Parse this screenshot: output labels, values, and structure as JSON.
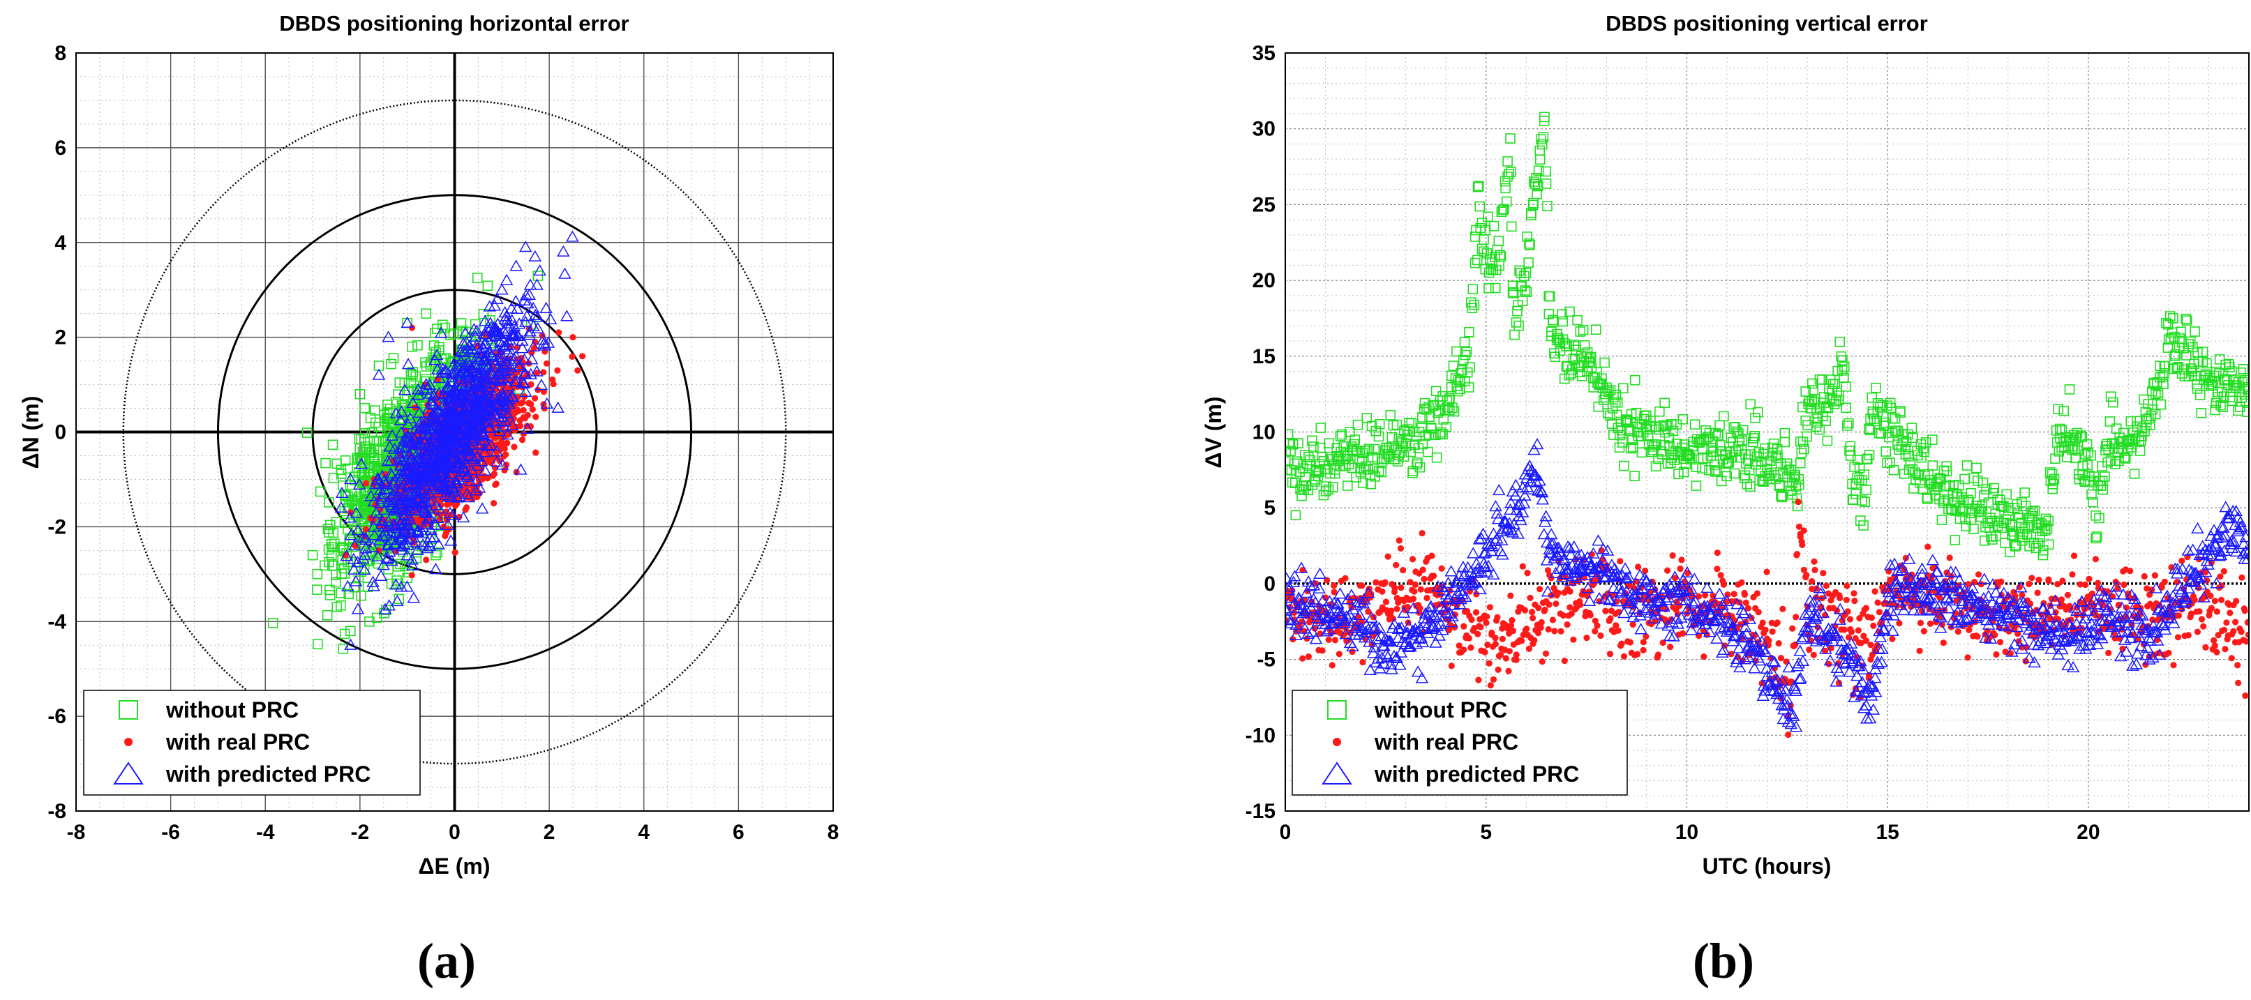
{
  "chart_data": [
    {
      "type": "scatter",
      "panel_label": "(a)",
      "title": "DBDS positioning horizontal error",
      "xlabel": "ΔE (m)",
      "ylabel": "ΔN (m)",
      "xlim": [
        -8,
        8
      ],
      "ylim": [
        -8,
        8
      ],
      "xticks": [
        -8,
        -6,
        -4,
        -2,
        0,
        2,
        4,
        6,
        8
      ],
      "yticks": [
        -8,
        -6,
        -4,
        -2,
        0,
        2,
        4,
        6,
        8
      ],
      "grid": true,
      "reference_circles_radius": [
        3,
        5,
        7
      ],
      "legend_position": "bottom-left",
      "series": [
        {
          "name": "without PRC",
          "marker": "square",
          "color": "#22dd22",
          "distribution": {
            "center": [
              -0.9,
              -0.6
            ],
            "spread": [
              0.75,
              1.2
            ],
            "correlation": 0.65,
            "count": 1100
          },
          "points": [
            [
              -2.2,
              -4.2
            ],
            [
              -2.9,
              -3.0
            ],
            [
              -2.4,
              -3.4
            ],
            [
              -1.2,
              -3.2
            ],
            [
              -1.8,
              -4.0
            ],
            [
              -0.6,
              2.5
            ],
            [
              -1.0,
              2.3
            ],
            [
              -0.2,
              2.2
            ],
            [
              -1.6,
              1.4
            ],
            [
              -2.1,
              -1.6
            ],
            [
              -2.6,
              -2.6
            ],
            [
              -3.0,
              -2.6
            ],
            [
              -0.4,
              -2.6
            ],
            [
              -1.4,
              -2.9
            ],
            [
              -0.9,
              1.8
            ],
            [
              -2.0,
              0.8
            ],
            [
              -2.4,
              -0.8
            ],
            [
              -1.6,
              -0.2
            ],
            [
              -1.9,
              -2.2
            ],
            [
              -2.5,
              -1.9
            ]
          ]
        },
        {
          "name": "with real PRC",
          "marker": "dot",
          "color": "#ff1a1a",
          "distribution": {
            "center": [
              0.2,
              -0.2
            ],
            "spread": [
              0.7,
              0.85
            ],
            "correlation": 0.7,
            "count": 1200
          },
          "points": [
            [
              2.7,
              1.6
            ],
            [
              2.5,
              2.0
            ],
            [
              2.6,
              1.3
            ],
            [
              2.2,
              2.1
            ],
            [
              -2.3,
              -2.6
            ],
            [
              -2.1,
              -2.4
            ],
            [
              -2.2,
              -1.7
            ],
            [
              -1.9,
              -2.2
            ],
            [
              -1.6,
              -2.5
            ],
            [
              -0.6,
              -2.7
            ],
            [
              -0.9,
              2.2
            ],
            [
              1.9,
              0.5
            ],
            [
              -1.2,
              -2.0
            ],
            [
              1.7,
              1.9
            ],
            [
              -1.7,
              -1.0
            ]
          ]
        },
        {
          "name": "with predicted PRC",
          "marker": "triangle",
          "color": "#1a1aff",
          "distribution": {
            "center": [
              -0.1,
              -0.1
            ],
            "spread": [
              0.85,
              1.3
            ],
            "correlation": 0.8,
            "count": 1100
          },
          "points": [
            [
              1.5,
              3.9
            ],
            [
              1.3,
              3.5
            ],
            [
              1.7,
              3.7
            ],
            [
              1.1,
              3.2
            ],
            [
              1.8,
              3.4
            ],
            [
              0.9,
              2.8
            ],
            [
              1.6,
              3.1
            ],
            [
              1.2,
              2.6
            ],
            [
              1.0,
              3.0
            ],
            [
              -2.4,
              -1.6
            ],
            [
              -1.9,
              -2.6
            ],
            [
              -1.4,
              -2.4
            ],
            [
              -0.9,
              -2.7
            ],
            [
              -0.4,
              -2.9
            ],
            [
              -1.6,
              1.2
            ],
            [
              -1.4,
              2.0
            ],
            [
              -1.0,
              2.3
            ],
            [
              -2.2,
              -1.0
            ],
            [
              1.4,
              -0.8
            ],
            [
              0.2,
              1.7
            ]
          ]
        }
      ]
    },
    {
      "type": "scatter",
      "panel_label": "(b)",
      "title": "DBDS positioning vertical error",
      "xlabel": "UTC (hours)",
      "ylabel": "ΔV (m)",
      "xlim": [
        0,
        24
      ],
      "ylim": [
        -15,
        35
      ],
      "xticks": [
        0,
        5,
        10,
        15,
        20
      ],
      "yticks": [
        -15,
        -10,
        -5,
        0,
        5,
        10,
        15,
        20,
        25,
        30,
        35
      ],
      "grid": true,
      "zero_reference_line": 0,
      "legend_position": "bottom-left",
      "series": [
        {
          "name": "without PRC",
          "marker": "square",
          "color": "#22dd22",
          "trend": [
            [
              0,
              8.5
            ],
            [
              0.5,
              7.5
            ],
            [
              1,
              7.5
            ],
            [
              1.5,
              8.2
            ],
            [
              2,
              8.6
            ],
            [
              2.5,
              8.9
            ],
            [
              3,
              9.3
            ],
            [
              3.5,
              10.2
            ],
            [
              4,
              11.3
            ],
            [
              4.3,
              13.0
            ],
            [
              4.6,
              15.0
            ],
            [
              4.8,
              25.0
            ],
            [
              5.0,
              22.0
            ],
            [
              5.3,
              21.0
            ],
            [
              5.5,
              27.0
            ],
            [
              5.6,
              29.0
            ],
            [
              5.7,
              17.0
            ],
            [
              5.9,
              19.0
            ],
            [
              6.1,
              23.0
            ],
            [
              6.3,
              27.0
            ],
            [
              6.45,
              31.0
            ],
            [
              6.6,
              16.5
            ],
            [
              7,
              15.8
            ],
            [
              7.5,
              15.0
            ],
            [
              8,
              12.5
            ],
            [
              8.5,
              10.5
            ],
            [
              9,
              9.5
            ],
            [
              9.5,
              9.2
            ],
            [
              10,
              8.9
            ],
            [
              10.5,
              8.7
            ],
            [
              11,
              8.6
            ],
            [
              11.5,
              8.5
            ],
            [
              12,
              8.4
            ],
            [
              12.5,
              7.5
            ],
            [
              12.8,
              6.0
            ],
            [
              12.9,
              11.0
            ],
            [
              13.2,
              11.5
            ],
            [
              13.6,
              12.0
            ],
            [
              13.9,
              14.5
            ],
            [
              14.1,
              7.0
            ],
            [
              14.4,
              5.5
            ],
            [
              14.6,
              11.5
            ],
            [
              14.9,
              10.5
            ],
            [
              15.5,
              8.5
            ],
            [
              16,
              7.5
            ],
            [
              16.5,
              6.0
            ],
            [
              17,
              5.5
            ],
            [
              17.5,
              4.5
            ],
            [
              18,
              4.0
            ],
            [
              18.5,
              3.8
            ],
            [
              19,
              3.5
            ],
            [
              19.2,
              10.0
            ],
            [
              19.6,
              9.5
            ],
            [
              20,
              7.0
            ],
            [
              20.2,
              5.0
            ],
            [
              20.5,
              9.5
            ],
            [
              21,
              9.0
            ],
            [
              21.5,
              11.0
            ],
            [
              21.9,
              14.0
            ],
            [
              22.0,
              16.5
            ],
            [
              22.5,
              14.5
            ],
            [
              23,
              13.5
            ],
            [
              23.5,
              12.8
            ],
            [
              24,
              12.5
            ]
          ]
        },
        {
          "name": "with real PRC",
          "marker": "dot",
          "color": "#ff1a1a",
          "trend": [
            [
              0,
              -1.5
            ],
            [
              0.5,
              -2.0
            ],
            [
              1,
              -2.0
            ],
            [
              1.5,
              -2.5
            ],
            [
              2,
              -2.2
            ],
            [
              2.5,
              -1.0
            ],
            [
              3,
              -0.5
            ],
            [
              3.5,
              -0.3
            ],
            [
              4,
              -1.0
            ],
            [
              4.5,
              -2.0
            ],
            [
              5,
              -3.5
            ],
            [
              5.5,
              -4.0
            ],
            [
              6,
              -3.0
            ],
            [
              6.5,
              -2.0
            ],
            [
              7,
              -1.5
            ],
            [
              7.5,
              -1.0
            ],
            [
              8,
              -1.2
            ],
            [
              8.5,
              -1.5
            ],
            [
              9,
              -1.8
            ],
            [
              9.5,
              -1.2
            ],
            [
              10,
              -1.0
            ],
            [
              10.5,
              -2.0
            ],
            [
              11,
              -1.5
            ],
            [
              11.5,
              -3.0
            ],
            [
              12,
              -3.5
            ],
            [
              12.3,
              -5.0
            ],
            [
              12.6,
              -6.5
            ],
            [
              12.8,
              5.0
            ],
            [
              13,
              -2.0
            ],
            [
              13.5,
              -2.0
            ],
            [
              14,
              -3.0
            ],
            [
              14.5,
              -4.0
            ],
            [
              15,
              -1.5
            ],
            [
              15.5,
              -0.8
            ],
            [
              16,
              -1.0
            ],
            [
              16.5,
              -1.3
            ],
            [
              17,
              -1.5
            ],
            [
              17.5,
              -1.8
            ],
            [
              18,
              -2.0
            ],
            [
              18.5,
              -2.0
            ],
            [
              19,
              -1.5
            ],
            [
              19.5,
              -2.0
            ],
            [
              20,
              -1.0
            ],
            [
              20.5,
              -2.0
            ],
            [
              21,
              -1.5
            ],
            [
              21.5,
              -2.5
            ],
            [
              22,
              -2.0
            ],
            [
              22.5,
              -0.5
            ],
            [
              23,
              -1.5
            ],
            [
              23.5,
              -2.5
            ],
            [
              24,
              -3.0
            ]
          ]
        },
        {
          "name": "with predicted PRC",
          "marker": "triangle",
          "color": "#1a1aff",
          "trend": [
            [
              0,
              -1.0
            ],
            [
              0.5,
              -1.5
            ],
            [
              1,
              -2.0
            ],
            [
              1.5,
              -2.2
            ],
            [
              2,
              -2.5
            ],
            [
              2.3,
              -5.0
            ],
            [
              2.7,
              -4.5
            ],
            [
              3,
              -4.0
            ],
            [
              3.5,
              -3.0
            ],
            [
              4,
              -1.5
            ],
            [
              4.5,
              0.5
            ],
            [
              5,
              2.0
            ],
            [
              5.5,
              4.0
            ],
            [
              6,
              6.0
            ],
            [
              6.3,
              8.0
            ],
            [
              6.5,
              2.0
            ],
            [
              7,
              1.5
            ],
            [
              7.5,
              1.0
            ],
            [
              8,
              0.5
            ],
            [
              8.5,
              -0.5
            ],
            [
              9,
              -1.0
            ],
            [
              9.5,
              -1.5
            ],
            [
              10,
              -1.0
            ],
            [
              10.5,
              -2.0
            ],
            [
              11,
              -3.0
            ],
            [
              11.5,
              -4.0
            ],
            [
              12,
              -5.5
            ],
            [
              12.3,
              -7.5
            ],
            [
              12.6,
              -8.5
            ],
            [
              13,
              -2.0
            ],
            [
              13.5,
              -3.0
            ],
            [
              14,
              -4.5
            ],
            [
              14.3,
              -6.0
            ],
            [
              14.6,
              -8.5
            ],
            [
              15,
              -1.0
            ],
            [
              15.5,
              -0.8
            ],
            [
              16,
              -0.5
            ],
            [
              16.5,
              -1.0
            ],
            [
              17,
              -1.5
            ],
            [
              17.5,
              -2.0
            ],
            [
              18,
              -2.2
            ],
            [
              18.5,
              -2.5
            ],
            [
              19,
              -3.0
            ],
            [
              19.5,
              -3.5
            ],
            [
              20,
              -3.0
            ],
            [
              20.5,
              -2.0
            ],
            [
              21,
              -3.0
            ],
            [
              21.5,
              -4.0
            ],
            [
              22,
              -1.5
            ],
            [
              22.5,
              0.5
            ],
            [
              23,
              2.0
            ],
            [
              23.5,
              3.5
            ],
            [
              24,
              3.0
            ]
          ]
        }
      ]
    }
  ]
}
